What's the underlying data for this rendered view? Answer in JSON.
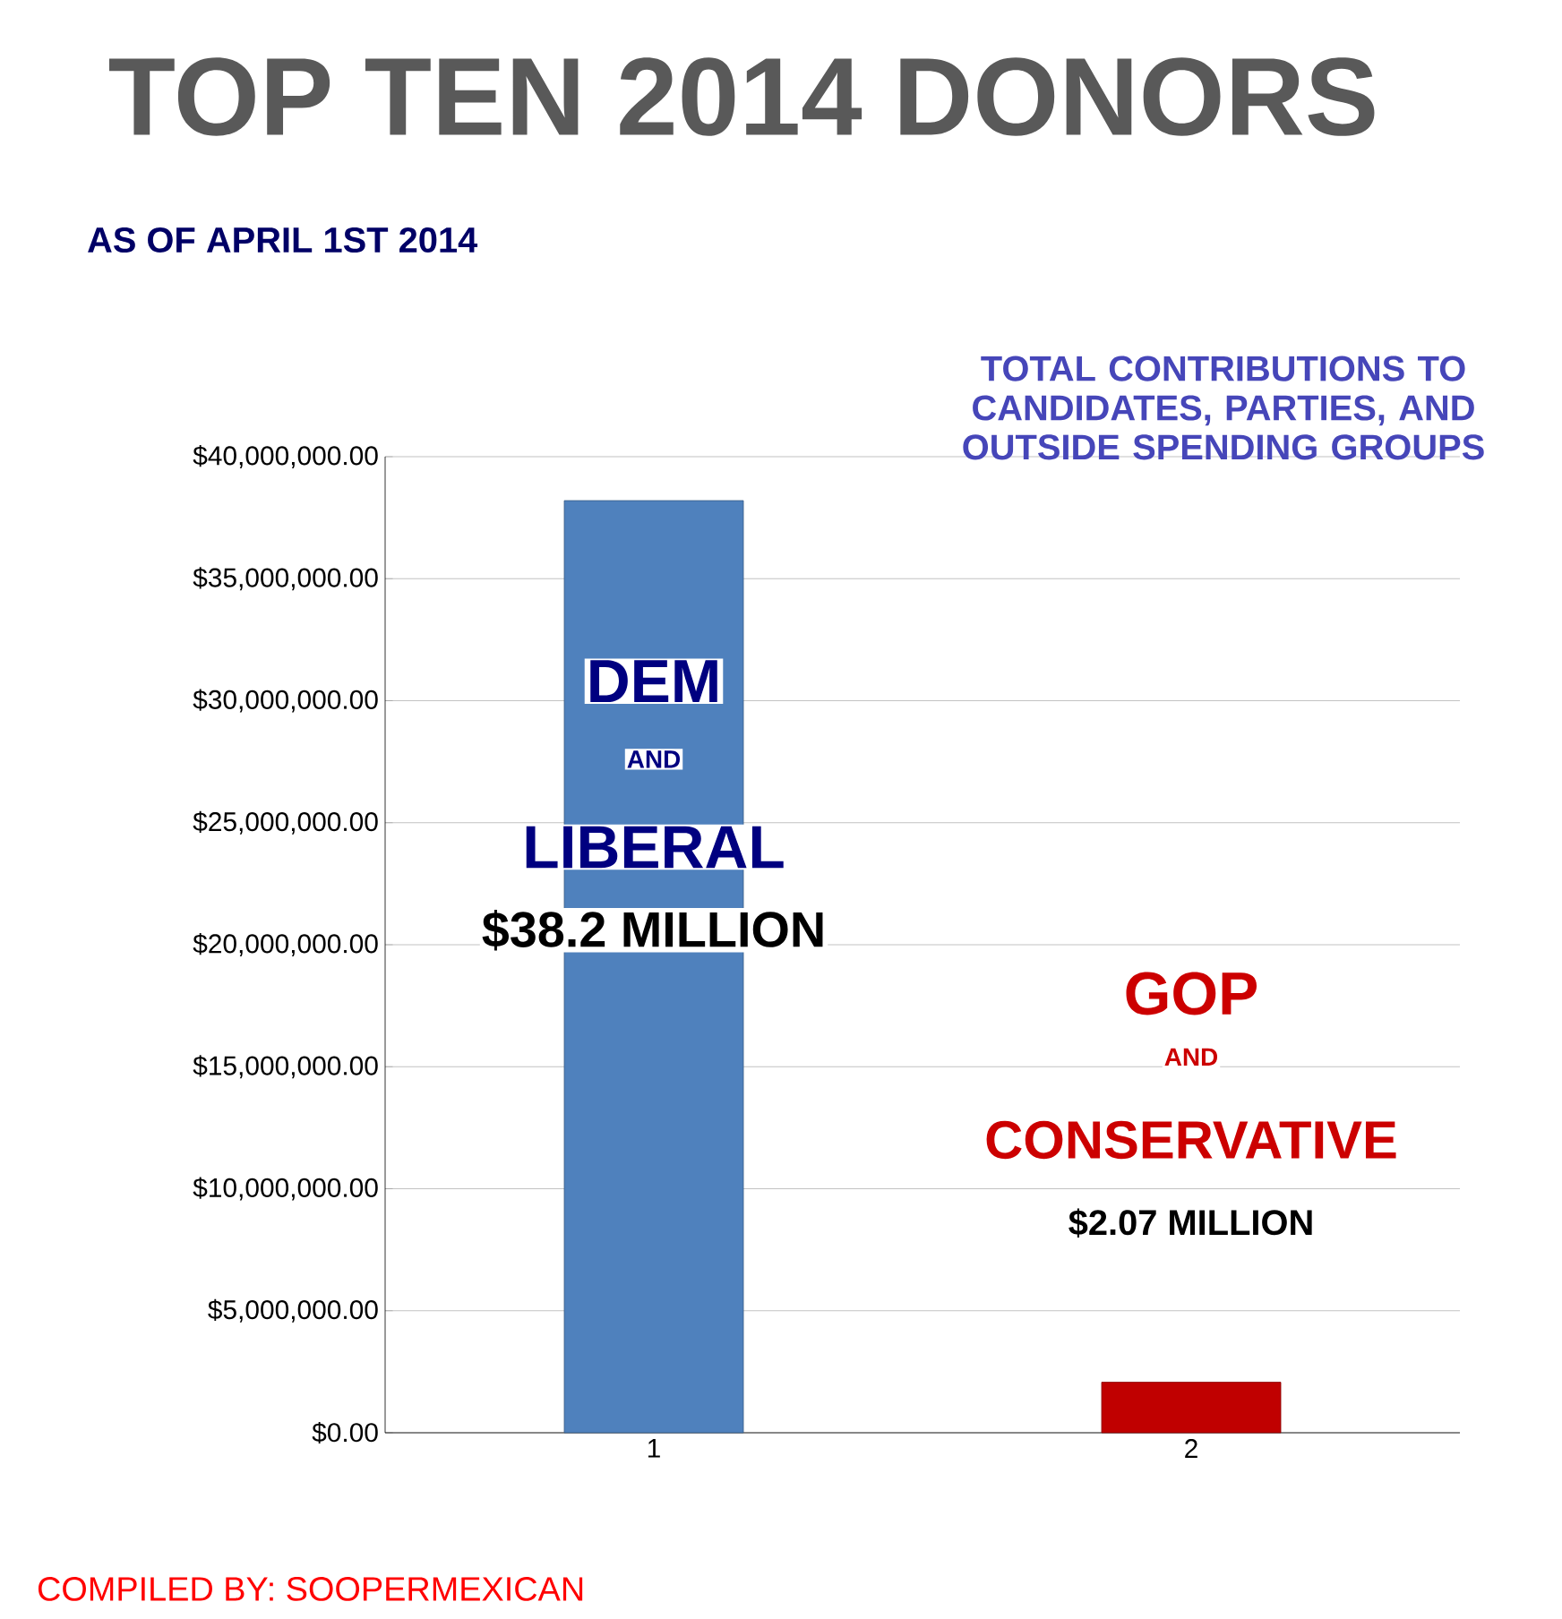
{
  "chart_data": {
    "type": "bar",
    "title": "TOP TEN 2014 DONORS",
    "subtitle": "AS OF APRIL 1ST 2014",
    "categories": [
      "1",
      "2"
    ],
    "values": [
      38200000,
      2070000
    ],
    "colors": [
      "#4f81bd",
      "#c00000"
    ],
    "ylim": [
      0,
      40000000
    ],
    "yticks": [
      {
        "value": 0,
        "label": "$0.00"
      },
      {
        "value": 5000000,
        "label": "$5,000,000.00"
      },
      {
        "value": 10000000,
        "label": "$10,000,000.00"
      },
      {
        "value": 15000000,
        "label": "$15,000,000.00"
      },
      {
        "value": 20000000,
        "label": "$20,000,000.00"
      },
      {
        "value": 25000000,
        "label": "$25,000,000.00"
      },
      {
        "value": 30000000,
        "label": "$30,000,000.00"
      },
      {
        "value": 35000000,
        "label": "$35,000,000.00"
      },
      {
        "value": 40000000,
        "label": "$40,000,000.00"
      }
    ],
    "grid": "y",
    "annotations": [
      "TOTAL CONTRIBUTIONS TO CANDIDATES, PARTIES, AND OUTSIDE SPENDING GROUPS",
      "COMPILED BY: SOOPERMEXICAN",
      "DEM",
      "AND",
      "LIBERAL",
      "$38.2 MILLION",
      "GOP",
      "AND",
      "CONSERVATIVE",
      "$2.07 MILLION"
    ]
  }
}
